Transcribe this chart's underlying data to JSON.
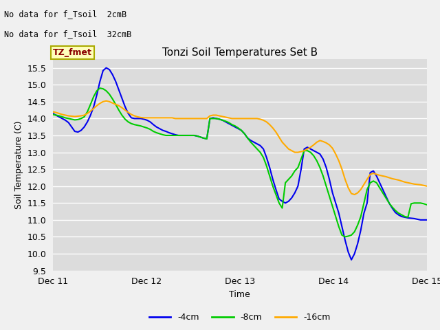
{
  "title": "Tonzi Soil Temperatures Set B",
  "xlabel": "Time",
  "ylabel": "Soil Temperature (C)",
  "ylim": [
    9.5,
    15.75
  ],
  "no_data_text": [
    "No data for f_Tsoil  2cmB",
    "No data for f_Tsoil  32cmB"
  ],
  "legend_label_text": "TZ_fmet",
  "legend_entries": [
    "-4cm",
    "-8cm",
    "-16cm"
  ],
  "legend_colors": [
    "#0000ee",
    "#00cc00",
    "#ffaa00"
  ],
  "background_color": "#dcdcdc",
  "grid_color": "#ffffff",
  "x_tick_labels": [
    "Dec 11",
    "Dec 12",
    "Dec 13",
    "Dec 14",
    "Dec 15"
  ],
  "x_tick_positions": [
    0,
    24,
    48,
    72,
    96
  ],
  "series": {
    "blue_4cm": [
      14.15,
      14.1,
      14.05,
      14.0,
      13.95,
      13.88,
      13.75,
      13.62,
      13.6,
      13.65,
      13.75,
      13.9,
      14.1,
      14.35,
      14.7,
      15.1,
      15.42,
      15.5,
      15.45,
      15.3,
      15.1,
      14.85,
      14.6,
      14.35,
      14.15,
      14.02,
      14.0,
      14.0,
      14.0,
      13.98,
      13.95,
      13.9,
      13.82,
      13.75,
      13.7,
      13.65,
      13.62,
      13.58,
      13.55,
      13.52,
      13.5,
      13.5,
      13.5,
      13.5,
      13.5,
      13.5,
      13.48,
      13.45,
      13.42,
      13.4,
      14.0,
      14.02,
      14.0,
      13.98,
      13.95,
      13.9,
      13.85,
      13.8,
      13.75,
      13.7,
      13.65,
      13.55,
      13.42,
      13.35,
      13.3,
      13.25,
      13.2,
      13.1,
      12.85,
      12.55,
      12.2,
      11.9,
      11.62,
      11.55,
      11.5,
      11.55,
      11.65,
      11.8,
      12.0,
      12.5,
      13.1,
      13.15,
      13.1,
      13.05,
      13.0,
      12.95,
      12.8,
      12.55,
      12.2,
      11.8,
      11.5,
      11.2,
      10.8,
      10.4,
      10.05,
      9.82,
      10.0,
      10.3,
      10.7,
      11.2,
      11.5,
      12.4,
      12.45,
      12.3,
      12.1,
      11.9,
      11.7,
      11.5,
      11.35,
      11.22,
      11.15,
      11.1,
      11.08,
      11.06,
      11.05,
      11.04,
      11.02,
      11.0,
      11.0,
      11.0
    ],
    "green_8cm": [
      14.12,
      14.1,
      14.08,
      14.05,
      14.02,
      14.0,
      13.98,
      13.96,
      13.97,
      14.0,
      14.05,
      14.2,
      14.42,
      14.65,
      14.82,
      14.9,
      14.88,
      14.82,
      14.72,
      14.58,
      14.42,
      14.25,
      14.1,
      13.98,
      13.9,
      13.85,
      13.82,
      13.8,
      13.78,
      13.75,
      13.72,
      13.68,
      13.62,
      13.58,
      13.55,
      13.52,
      13.5,
      13.5,
      13.5,
      13.5,
      13.5,
      13.5,
      13.5,
      13.5,
      13.5,
      13.5,
      13.48,
      13.45,
      13.42,
      13.4,
      14.0,
      14.0,
      14.0,
      13.98,
      13.95,
      13.92,
      13.88,
      13.82,
      13.78,
      13.72,
      13.65,
      13.55,
      13.42,
      13.3,
      13.2,
      13.1,
      13.0,
      12.85,
      12.6,
      12.3,
      12.0,
      11.75,
      11.5,
      11.35,
      12.1,
      12.2,
      12.3,
      12.45,
      12.55,
      12.8,
      13.05,
      13.05,
      13.0,
      12.9,
      12.75,
      12.55,
      12.3,
      12.0,
      11.7,
      11.4,
      11.1,
      10.8,
      10.55,
      10.5,
      10.52,
      10.55,
      10.65,
      10.85,
      11.1,
      11.5,
      11.9,
      12.1,
      12.15,
      12.1,
      11.95,
      11.8,
      11.65,
      11.5,
      11.38,
      11.28,
      11.2,
      11.15,
      11.1,
      11.08,
      11.48,
      11.5,
      11.5,
      11.5,
      11.48,
      11.45
    ],
    "orange_16cm": [
      14.2,
      14.18,
      14.15,
      14.12,
      14.1,
      14.08,
      14.07,
      14.06,
      14.07,
      14.08,
      14.1,
      14.15,
      14.22,
      14.3,
      14.38,
      14.45,
      14.5,
      14.52,
      14.5,
      14.46,
      14.42,
      14.38,
      14.32,
      14.25,
      14.18,
      14.12,
      14.08,
      14.05,
      14.03,
      14.02,
      14.02,
      14.02,
      14.02,
      14.02,
      14.02,
      14.02,
      14.02,
      14.02,
      14.02,
      14.0,
      14.0,
      14.0,
      14.0,
      14.0,
      14.0,
      14.0,
      14.0,
      14.0,
      14.0,
      14.0,
      14.08,
      14.1,
      14.1,
      14.08,
      14.06,
      14.04,
      14.02,
      14.0,
      14.0,
      14.0,
      14.0,
      14.0,
      14.0,
      14.0,
      14.0,
      14.0,
      13.98,
      13.95,
      13.9,
      13.82,
      13.72,
      13.6,
      13.45,
      13.3,
      13.2,
      13.1,
      13.05,
      13.0,
      13.0,
      13.02,
      13.05,
      13.1,
      13.15,
      13.22,
      13.3,
      13.35,
      13.32,
      13.28,
      13.22,
      13.12,
      12.95,
      12.75,
      12.5,
      12.2,
      11.95,
      11.78,
      11.75,
      11.8,
      11.9,
      12.05,
      12.2,
      12.35,
      12.38,
      12.35,
      12.32,
      12.3,
      12.28,
      12.25,
      12.22,
      12.2,
      12.18,
      12.15,
      12.12,
      12.1,
      12.08,
      12.06,
      12.05,
      12.04,
      12.02,
      12.0
    ]
  }
}
